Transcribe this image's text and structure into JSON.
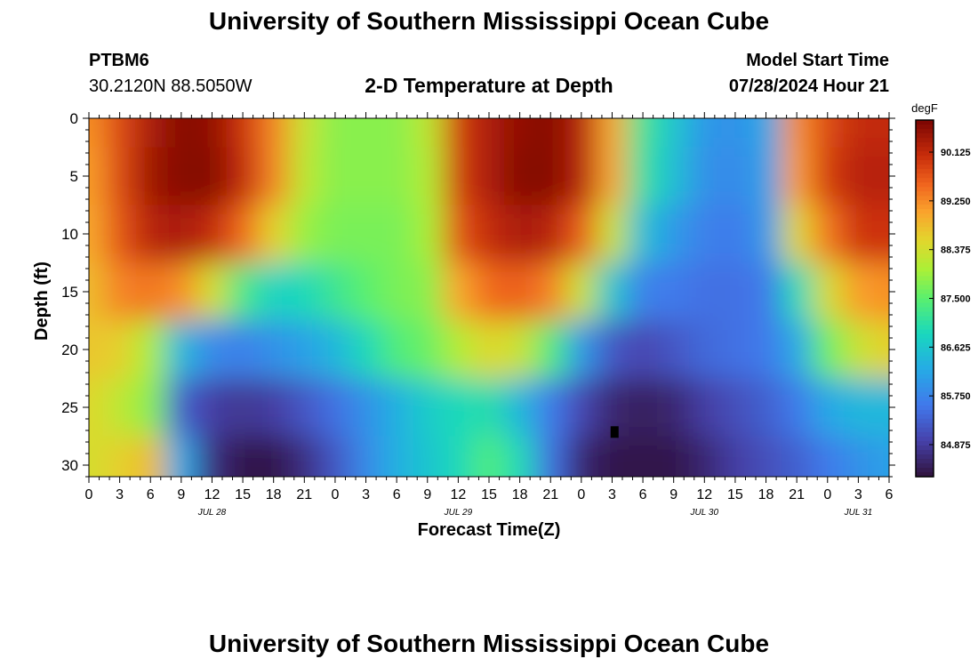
{
  "page": {
    "title": "University of Southern Mississippi Ocean Cube",
    "station_id": "PTBM6",
    "station_coords": "30.2120N  88.5050W",
    "subtitle": "2-D Temperature at Depth",
    "model_label": "Model Start Time",
    "model_time": "07/28/2024 Hour 21",
    "footer_title": "University of Southern Mississippi Ocean Cube"
  },
  "chart_data": {
    "type": "heatmap",
    "title": "2-D Temperature at Depth",
    "xlabel": "Forecast Time(Z)",
    "ylabel": "Depth (ft)",
    "x_unit": "hours since 07/28 00Z",
    "xlim": [
      0,
      78
    ],
    "ylim": [
      31,
      0
    ],
    "y_ticks": [
      0,
      5,
      10,
      15,
      20,
      25,
      30
    ],
    "x_ticks": [
      {
        "x": 0,
        "label": "0"
      },
      {
        "x": 3,
        "label": "3"
      },
      {
        "x": 6,
        "label": "6"
      },
      {
        "x": 9,
        "label": "9"
      },
      {
        "x": 12,
        "label": "12"
      },
      {
        "x": 15,
        "label": "15"
      },
      {
        "x": 18,
        "label": "18"
      },
      {
        "x": 21,
        "label": "21"
      },
      {
        "x": 24,
        "label": "0"
      },
      {
        "x": 27,
        "label": "3"
      },
      {
        "x": 30,
        "label": "6"
      },
      {
        "x": 33,
        "label": "9"
      },
      {
        "x": 36,
        "label": "12"
      },
      {
        "x": 39,
        "label": "15"
      },
      {
        "x": 42,
        "label": "18"
      },
      {
        "x": 45,
        "label": "21"
      },
      {
        "x": 48,
        "label": "0"
      },
      {
        "x": 51,
        "label": "3"
      },
      {
        "x": 54,
        "label": "6"
      },
      {
        "x": 57,
        "label": "9"
      },
      {
        "x": 60,
        "label": "12"
      },
      {
        "x": 63,
        "label": "15"
      },
      {
        "x": 66,
        "label": "18"
      },
      {
        "x": 69,
        "label": "21"
      },
      {
        "x": 72,
        "label": "0"
      },
      {
        "x": 75,
        "label": "3"
      },
      {
        "x": 78,
        "label": "6"
      }
    ],
    "date_labels": [
      {
        "x": 12,
        "label": "JUL 28"
      },
      {
        "x": 36,
        "label": "JUL 29"
      },
      {
        "x": 60,
        "label": "JUL 30"
      },
      {
        "x": 75,
        "label": "JUL 31"
      }
    ],
    "colorbar": {
      "unit": "degF",
      "range": [
        84.3,
        90.7
      ],
      "ticks": [
        84.875,
        85.75,
        86.625,
        87.5,
        88.375,
        89.25,
        90.125
      ],
      "tick_labels": [
        "84.875",
        "85.750",
        "86.625",
        "87.500",
        "88.375",
        "89.250",
        "90.125"
      ]
    },
    "depth_rows": [
      0,
      5,
      10,
      15,
      20,
      25,
      30
    ],
    "time_cols": [
      0,
      3,
      6,
      9,
      12,
      15,
      18,
      21,
      24,
      27,
      30,
      33,
      36,
      39,
      42,
      45,
      48,
      51,
      54,
      57,
      60,
      63,
      66,
      69,
      72,
      75,
      78
    ],
    "values_degF": [
      [
        89.2,
        89.8,
        90.3,
        90.6,
        90.5,
        90.0,
        89.3,
        88.3,
        87.8,
        87.8,
        87.8,
        88.2,
        89.9,
        90.3,
        90.5,
        90.6,
        90.2,
        89.0,
        87.2,
        86.6,
        86.0,
        85.9,
        86.2,
        89.2,
        89.8,
        90.1,
        90.1
      ],
      [
        89.1,
        89.8,
        90.4,
        90.6,
        90.6,
        90.1,
        89.3,
        88.2,
        87.8,
        87.8,
        87.8,
        88.1,
        89.9,
        90.3,
        90.6,
        90.6,
        90.2,
        89.0,
        87.1,
        86.5,
        85.9,
        85.8,
        86.1,
        89.1,
        89.9,
        90.2,
        90.2
      ],
      [
        89.0,
        89.7,
        90.2,
        90.3,
        90.1,
        89.5,
        88.6,
        87.9,
        87.7,
        87.7,
        87.7,
        88.0,
        89.7,
        90.1,
        90.3,
        90.2,
        89.6,
        88.3,
        86.5,
        86.0,
        85.7,
        85.6,
        86.0,
        88.5,
        89.4,
        90.0,
        90.0
      ],
      [
        88.8,
        89.3,
        89.4,
        89.2,
        88.4,
        87.3,
        86.8,
        86.9,
        87.2,
        87.5,
        87.7,
        87.8,
        89.0,
        89.5,
        89.6,
        89.3,
        88.3,
        86.6,
        85.7,
        85.6,
        85.5,
        85.5,
        85.6,
        86.9,
        88.4,
        89.1,
        89.2
      ],
      [
        88.7,
        88.6,
        88.0,
        86.4,
        85.8,
        85.7,
        85.9,
        86.1,
        86.4,
        86.9,
        87.4,
        87.6,
        88.1,
        88.5,
        88.3,
        87.4,
        86.0,
        85.2,
        85.0,
        85.2,
        85.4,
        85.5,
        85.6,
        86.2,
        87.6,
        88.3,
        88.6
      ],
      [
        88.5,
        88.2,
        87.8,
        85.3,
        84.9,
        84.8,
        84.9,
        85.2,
        85.5,
        85.9,
        86.3,
        86.7,
        86.9,
        87.0,
        86.4,
        85.6,
        85.0,
        84.6,
        84.5,
        84.6,
        84.9,
        85.1,
        85.3,
        85.6,
        86.2,
        86.4,
        86.4
      ],
      [
        88.4,
        88.6,
        88.8,
        86.2,
        84.7,
        84.4,
        84.4,
        84.7,
        85.2,
        85.8,
        86.3,
        86.6,
        86.9,
        87.4,
        86.9,
        85.5,
        84.6,
        84.4,
        84.4,
        84.4,
        84.6,
        84.9,
        85.1,
        85.3,
        85.6,
        85.9,
        86.1
      ]
    ],
    "missing_cells": [
      {
        "x": 51.2,
        "y": 27.1
      }
    ]
  }
}
